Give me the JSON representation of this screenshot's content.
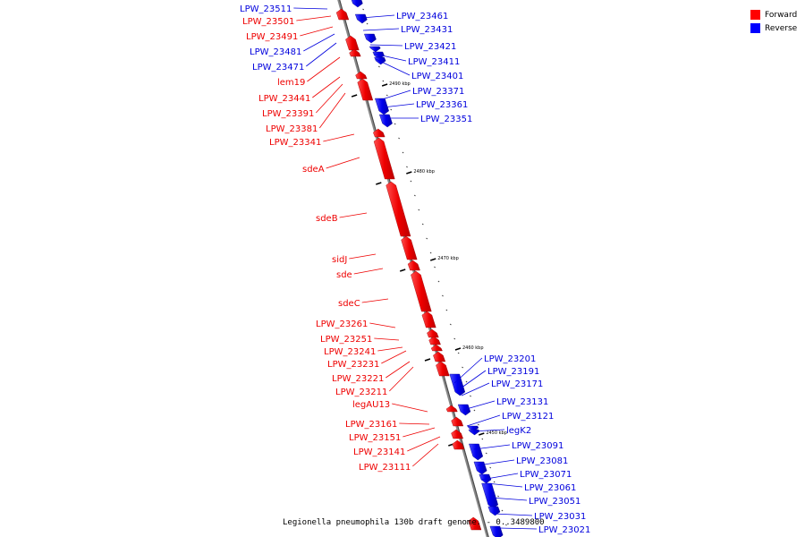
{
  "legend": [
    {
      "label": "Forward",
      "color": "#ff0000"
    },
    {
      "label": "Reverse",
      "color": "#0000ff"
    }
  ],
  "caption": "Legionella pneumophila 130b draft genome. - 0..3489800",
  "kbp_ticks": [
    "2490 kbp",
    "2480 kbp",
    "2470 kbp",
    "2460 kbp",
    "2450 kbp"
  ],
  "genes_left": [
    {
      "label": "LPW_23511",
      "strand": "reverse"
    },
    {
      "label": "LPW_23501",
      "strand": "forward"
    },
    {
      "label": "LPW_23491",
      "strand": "forward"
    },
    {
      "label": "LPW_23481",
      "strand": "reverse"
    },
    {
      "label": "LPW_23471",
      "strand": "reverse"
    },
    {
      "label": "lem19",
      "strand": "forward"
    },
    {
      "label": "LPW_23441",
      "strand": "forward"
    },
    {
      "label": "LPW_23391",
      "strand": "forward"
    },
    {
      "label": "LPW_23381",
      "strand": "forward"
    },
    {
      "label": "LPW_23341",
      "strand": "forward"
    },
    {
      "label": "sdeA",
      "strand": "forward"
    },
    {
      "label": "sdeB",
      "strand": "forward"
    },
    {
      "label": "sidJ",
      "strand": "forward"
    },
    {
      "label": "sde",
      "strand": "forward"
    },
    {
      "label": "sdeC",
      "strand": "forward"
    },
    {
      "label": "LPW_23261",
      "strand": "forward"
    },
    {
      "label": "LPW_23251",
      "strand": "forward"
    },
    {
      "label": "LPW_23241",
      "strand": "forward"
    },
    {
      "label": "LPW_23231",
      "strand": "forward"
    },
    {
      "label": "LPW_23221",
      "strand": "forward"
    },
    {
      "label": "LPW_23211",
      "strand": "forward"
    },
    {
      "label": "legAU13",
      "strand": "forward"
    },
    {
      "label": "LPW_23161",
      "strand": "forward"
    },
    {
      "label": "LPW_23151",
      "strand": "forward"
    },
    {
      "label": "LPW_23141",
      "strand": "forward"
    },
    {
      "label": "LPW_23111",
      "strand": "forward"
    }
  ],
  "genes_right": [
    {
      "label": "LPW_23461",
      "strand": "reverse"
    },
    {
      "label": "LPW_23431",
      "strand": "reverse"
    },
    {
      "label": "LPW_23421",
      "strand": "reverse"
    },
    {
      "label": "LPW_23411",
      "strand": "reverse"
    },
    {
      "label": "LPW_23401",
      "strand": "reverse"
    },
    {
      "label": "LPW_23371",
      "strand": "reverse"
    },
    {
      "label": "LPW_23361",
      "strand": "reverse"
    },
    {
      "label": "LPW_23351",
      "strand": "reverse"
    },
    {
      "label": "LPW_23201",
      "strand": "reverse"
    },
    {
      "label": "LPW_23191",
      "strand": "reverse"
    },
    {
      "label": "LPW_23171",
      "strand": "reverse"
    },
    {
      "label": "LPW_23131",
      "strand": "reverse"
    },
    {
      "label": "LPW_23121",
      "strand": "reverse"
    },
    {
      "label": "legK2",
      "strand": "reverse"
    },
    {
      "label": "LPW_23091",
      "strand": "reverse"
    },
    {
      "label": "LPW_23081",
      "strand": "reverse"
    },
    {
      "label": "LPW_23071",
      "strand": "reverse"
    },
    {
      "label": "LPW_23061",
      "strand": "reverse"
    },
    {
      "label": "LPW_23051",
      "strand": "reverse"
    },
    {
      "label": "LPW_23031",
      "strand": "reverse"
    },
    {
      "label": "LPW_23021",
      "strand": "reverse"
    }
  ]
}
